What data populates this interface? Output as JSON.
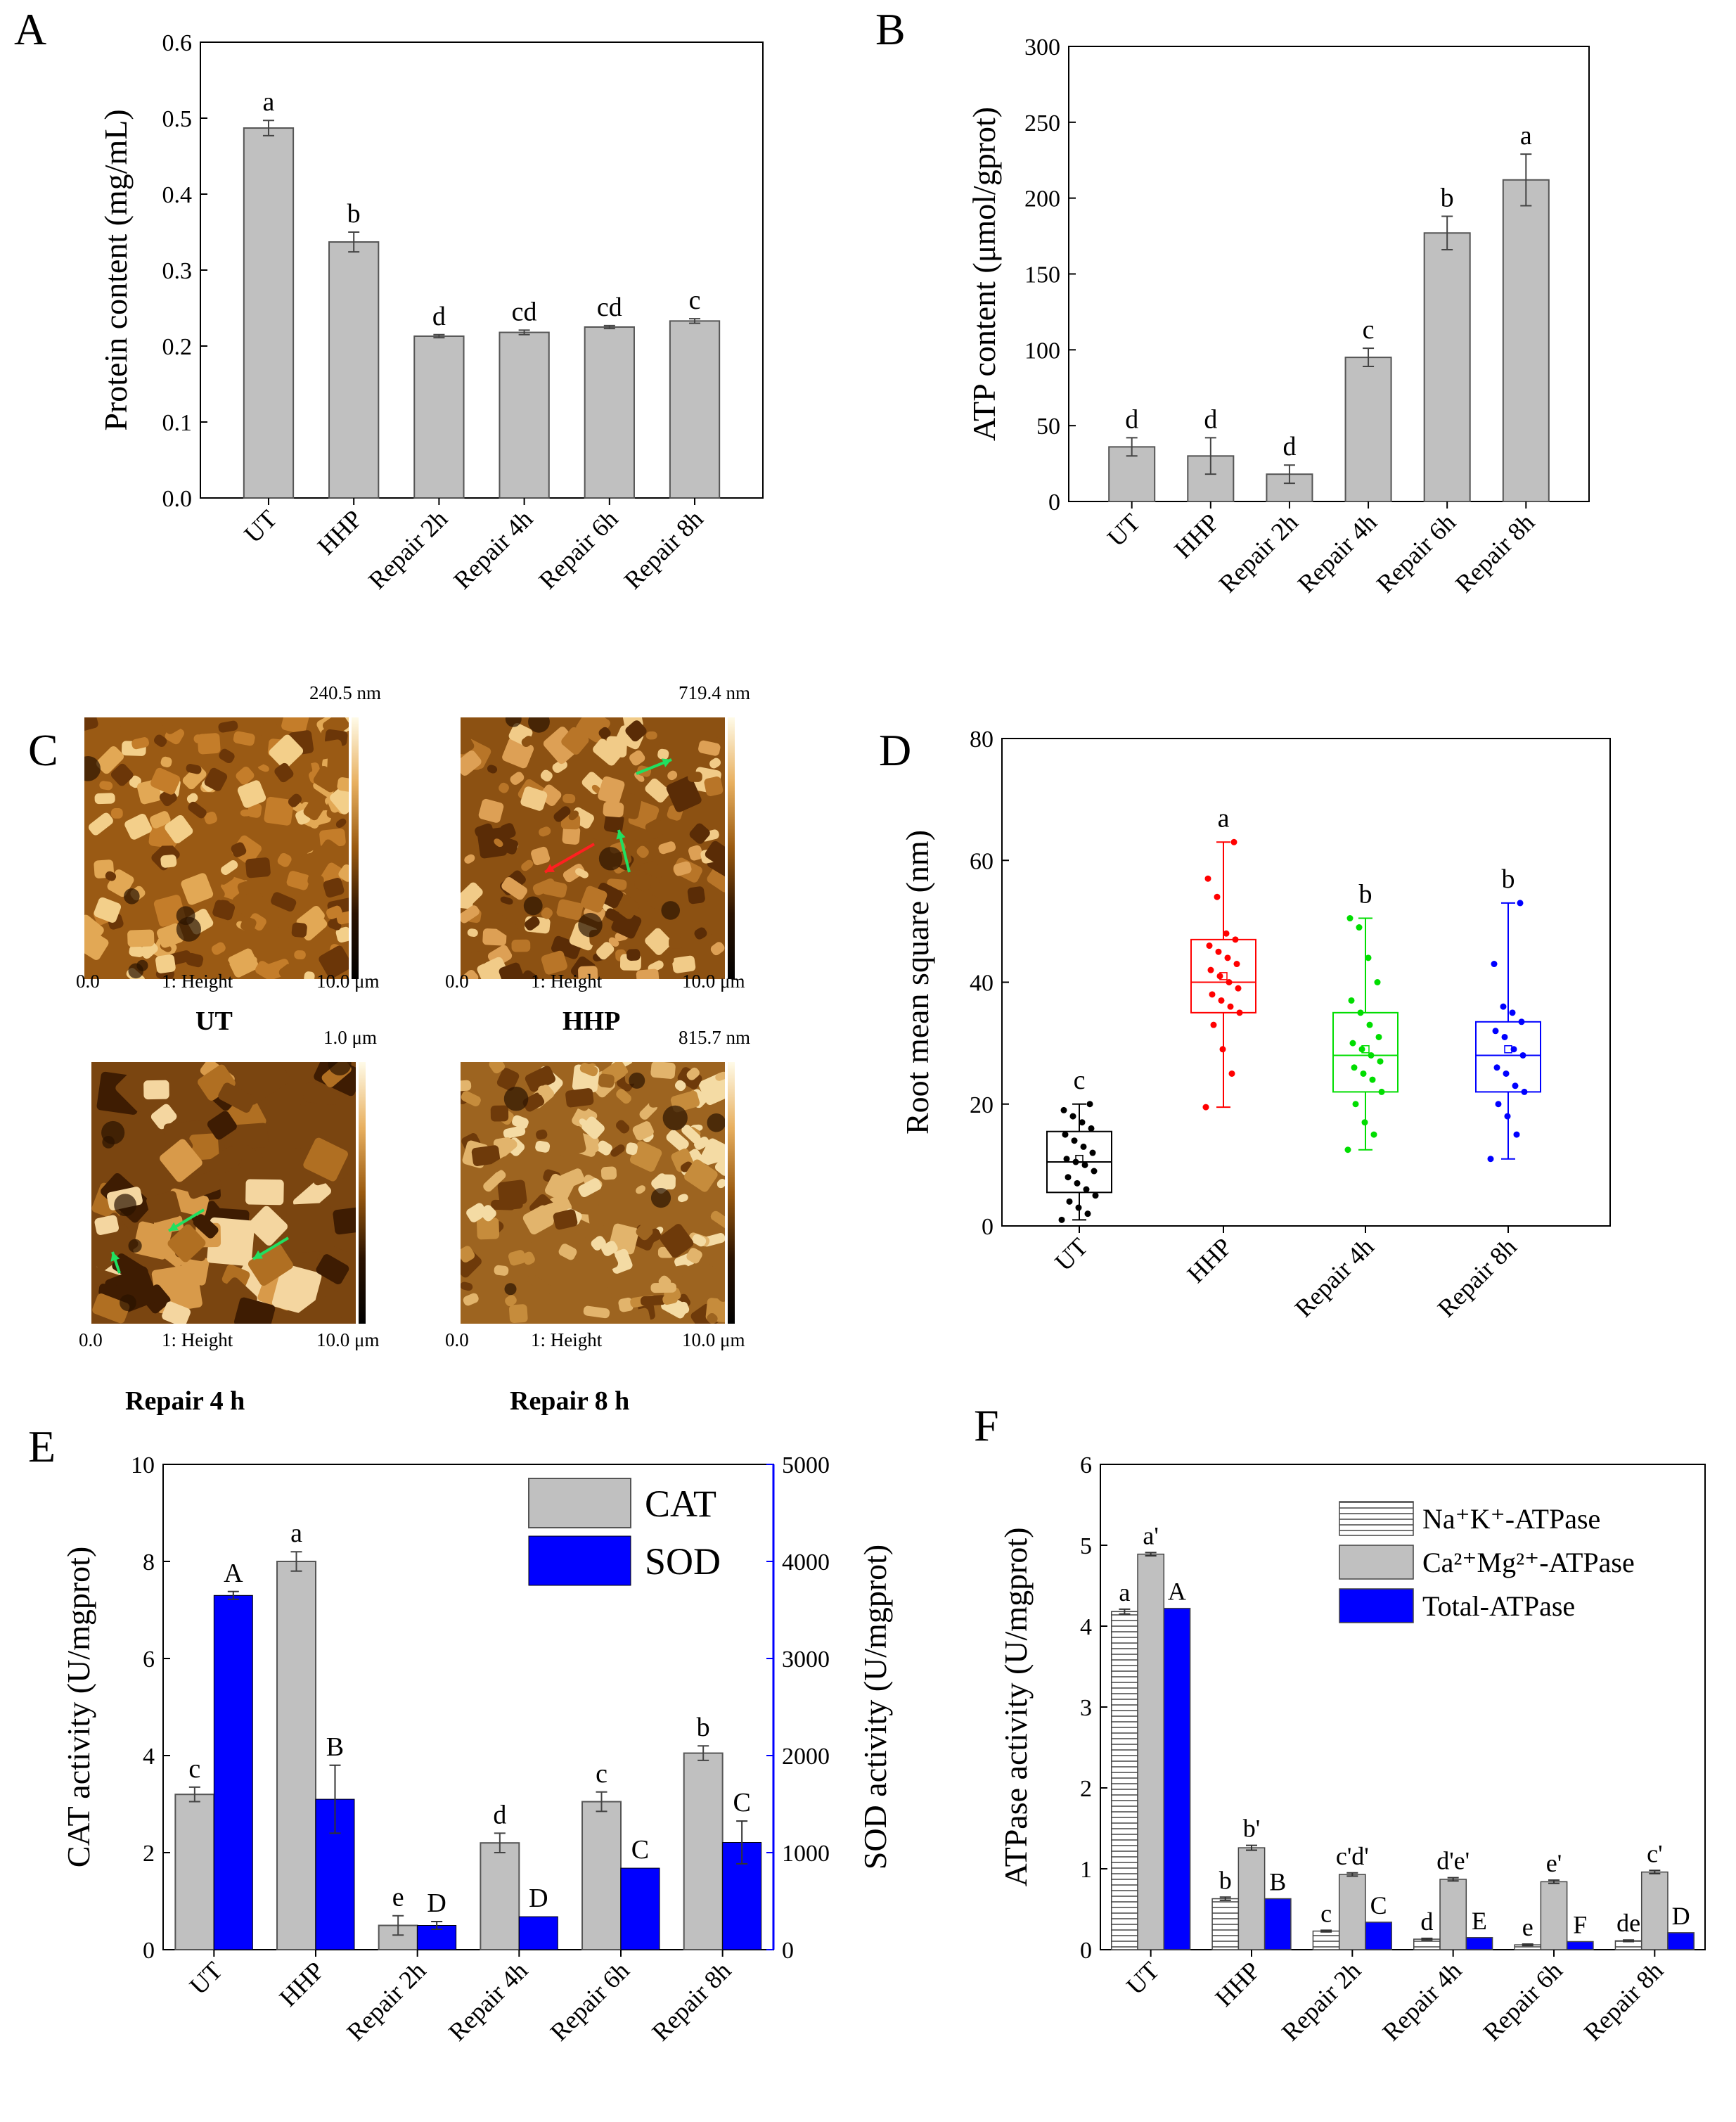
{
  "panel_labels": [
    "A",
    "B",
    "C",
    "D",
    "E",
    "F"
  ],
  "afm": {
    "height_label": "1:  Height",
    "axis_min": "0.0",
    "axis_max": "10.0 μm",
    "images": [
      {
        "title": "UT",
        "zmax": "240.5 nm",
        "tone": "dark",
        "arrows": []
      },
      {
        "title": "HHP",
        "zmax": "719.4 nm",
        "tone": "grain",
        "arrows": [
          "red",
          "green",
          "green"
        ]
      },
      {
        "title": "Repair 4 h",
        "zmax": "1.0 μm",
        "tone": "blocky",
        "arrows": [
          "green",
          "green",
          "green"
        ]
      },
      {
        "title": "Repair 8 h",
        "zmax": "815.7 nm",
        "tone": "light",
        "arrows": []
      }
    ]
  },
  "chart_data": [
    {
      "id": "A",
      "type": "bar",
      "categories": [
        "UT",
        "HHP",
        "Repair 2h",
        "Repair 4h",
        "Repair 6h",
        "Repair 8h"
      ],
      "values": [
        0.487,
        0.337,
        0.213,
        0.218,
        0.225,
        0.233
      ],
      "errors": [
        0.01,
        0.013,
        0.002,
        0.003,
        0.002,
        0.003
      ],
      "letters": [
        "a",
        "b",
        "d",
        "cd",
        "cd",
        "c"
      ],
      "ylabel": "Protein content (mg/mL)",
      "ylim": [
        0,
        0.6
      ],
      "yticks": [
        "0.0",
        "0.1",
        "0.2",
        "0.3",
        "0.4",
        "0.5",
        "0.6"
      ],
      "bar_color": "#c0c0c0"
    },
    {
      "id": "B",
      "type": "bar",
      "categories": [
        "UT",
        "HHP",
        "Repair 2h",
        "Repair 4h",
        "Repair 6h",
        "Repair 8h"
      ],
      "values": [
        36,
        30,
        18,
        95,
        177,
        212
      ],
      "errors": [
        6,
        12,
        6,
        6,
        11,
        17
      ],
      "letters": [
        "d",
        "d",
        "d",
        "c",
        "b",
        "a"
      ],
      "ylabel": "ATP content (μmol/gprot)",
      "ylim": [
        0,
        300
      ],
      "yticks": [
        "0",
        "50",
        "100",
        "150",
        "200",
        "250",
        "300"
      ],
      "bar_color": "#c0c0c0"
    },
    {
      "id": "D",
      "type": "box",
      "categories": [
        "UT",
        "HHP",
        "Repair 4h",
        "Repair 8h"
      ],
      "ylabel": "Root mean square (nm)",
      "ylim": [
        0,
        80
      ],
      "yticks": [
        "0",
        "20",
        "40",
        "60",
        "80"
      ],
      "letters": [
        "c",
        "a",
        "b",
        "b"
      ],
      "colors": [
        "#000000",
        "#ff0000",
        "#00dd00",
        "#0000ff"
      ],
      "boxes": [
        {
          "min": 1,
          "q1": 5.5,
          "median": 10.5,
          "mean": 11,
          "q3": 15.5,
          "max": 20,
          "points": [
            1,
            2,
            3,
            4,
            5,
            6,
            7,
            8,
            9,
            10,
            10.5,
            11,
            12,
            13,
            14,
            15,
            16,
            17,
            18,
            19,
            20
          ]
        },
        {
          "min": 19.5,
          "q1": 35,
          "median": 40,
          "mean": 41,
          "q3": 47,
          "max": 63,
          "points": [
            19.5,
            25,
            29,
            33,
            35,
            36,
            37,
            38,
            39,
            40,
            41,
            42,
            43,
            44,
            45,
            46,
            47,
            48,
            54,
            57,
            63
          ]
        },
        {
          "min": 12.5,
          "q1": 22,
          "median": 28,
          "mean": 29,
          "q3": 35,
          "max": 50.5,
          "points": [
            12.5,
            15,
            17,
            20,
            22,
            24,
            25,
            26,
            27,
            28,
            29,
            30,
            31,
            33,
            35,
            37,
            40,
            44,
            49,
            50.5
          ]
        },
        {
          "min": 11,
          "q1": 22,
          "median": 28,
          "mean": 29,
          "q3": 33.5,
          "max": 53,
          "points": [
            11,
            15,
            18,
            20,
            22,
            23,
            25,
            26,
            28,
            29,
            31,
            32,
            33.5,
            35,
            36,
            43,
            53
          ]
        }
      ]
    },
    {
      "id": "E",
      "type": "bar",
      "categories": [
        "UT",
        "HHP",
        "Repair 2h",
        "Repair 4h",
        "Repair 6h",
        "Repair 8h"
      ],
      "series": [
        {
          "name": "CAT",
          "axis": "left",
          "color": "#c0c0c0",
          "values": [
            3.2,
            8.0,
            0.5,
            2.2,
            3.05,
            4.05
          ],
          "errors": [
            0.15,
            0.2,
            0.2,
            0.2,
            0.2,
            0.15
          ],
          "letters": [
            "c",
            "a",
            "e",
            "d",
            "c",
            "b"
          ]
        },
        {
          "name": "SOD",
          "axis": "right",
          "color": "#0000ff",
          "values": [
            3650,
            1550,
            250,
            340,
            840,
            1105
          ],
          "errors": [
            40,
            350,
            40,
            0,
            0,
            220
          ],
          "letters": [
            "A",
            "B",
            "D",
            "D",
            "C",
            "C"
          ]
        }
      ],
      "ylabel": "CAT activity (U/mgprot)",
      "ylabel_right": "SOD activity (U/mgprot)",
      "ylim": [
        0,
        10
      ],
      "ylim_right": [
        0,
        5000
      ],
      "yticks": [
        "0",
        "2",
        "4",
        "6",
        "8",
        "10"
      ],
      "yticks_right": [
        "0",
        "1000",
        "2000",
        "3000",
        "4000",
        "5000"
      ],
      "legend_position": "top-right"
    },
    {
      "id": "F",
      "type": "bar",
      "categories": [
        "UT",
        "HHP",
        "Repair 2h",
        "Repair 4h",
        "Repair 6h",
        "Repair 8h"
      ],
      "series": [
        {
          "name": "Na⁺K⁺-ATPase",
          "color": "#ffffff",
          "pattern": "horizontal",
          "values": [
            4.18,
            0.63,
            0.23,
            0.13,
            0.06,
            0.11
          ],
          "errors": [
            0.03,
            0.02,
            0.01,
            0.01,
            0.01,
            0.01
          ],
          "letters": [
            "a",
            "b",
            "c",
            "d",
            "e",
            "de"
          ]
        },
        {
          "name": "Ca²⁺Mg²⁺-ATPase",
          "color": "#c0c0c0",
          "values": [
            4.89,
            1.26,
            0.93,
            0.87,
            0.84,
            0.96
          ],
          "errors": [
            0.02,
            0.03,
            0.02,
            0.02,
            0.02,
            0.02
          ],
          "letters": [
            "a'",
            "b'",
            "c'd'",
            "d'e'",
            "e'",
            "c'"
          ]
        },
        {
          "name": "Total-ATPase",
          "color": "#0000ff",
          "values": [
            4.22,
            0.63,
            0.34,
            0.15,
            0.1,
            0.21
          ],
          "errors": [
            0,
            0,
            0,
            0,
            0,
            0
          ],
          "letters": [
            "A",
            "B",
            "C",
            "E",
            "F",
            "D"
          ]
        }
      ],
      "ylabel": "ATPase activity (U/mgprot)",
      "ylim": [
        0,
        6
      ],
      "yticks": [
        "0",
        "1",
        "2",
        "3",
        "4",
        "5",
        "6"
      ],
      "legend_position": "top-right"
    }
  ]
}
